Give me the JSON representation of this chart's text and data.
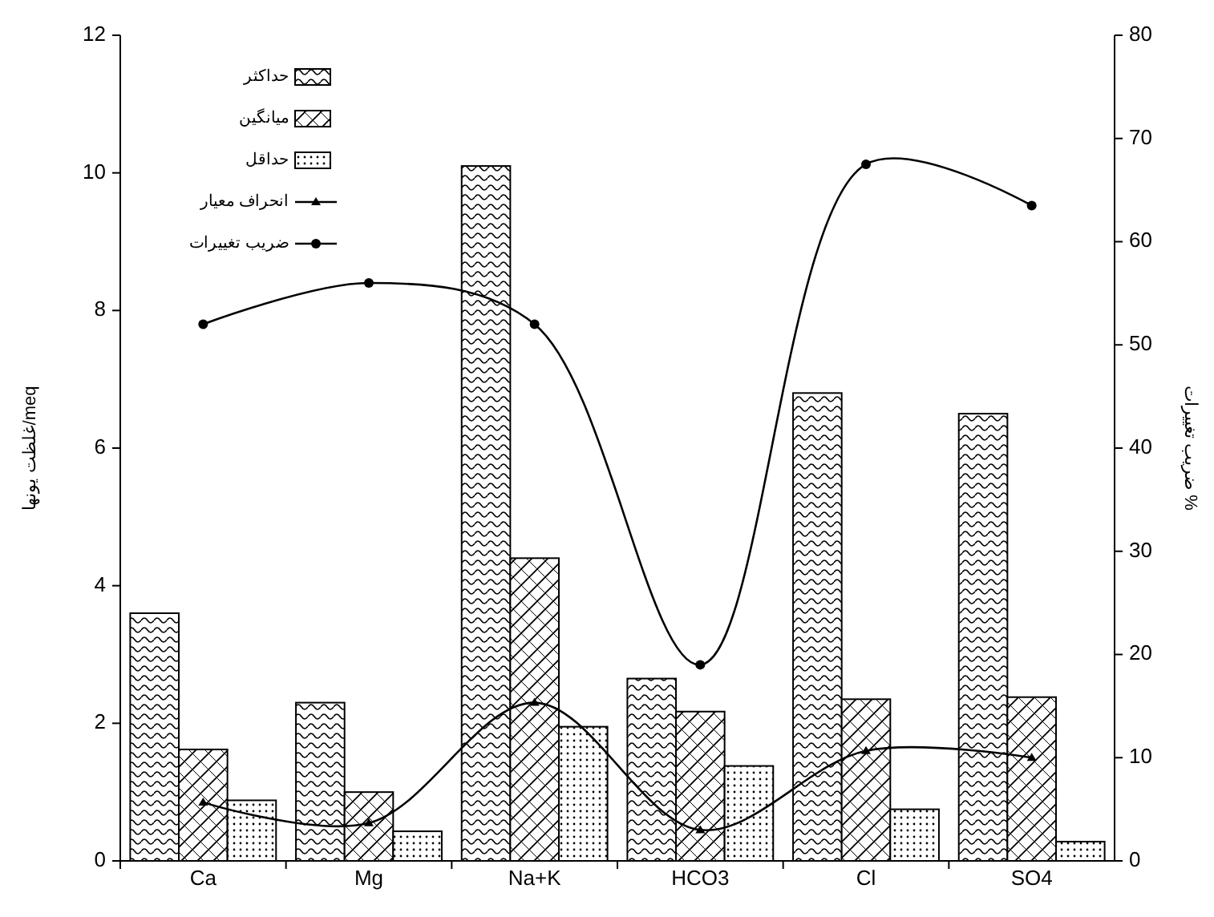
{
  "chart_data": {
    "type": "bar",
    "xlabel": null,
    "ylabel": "غلظت یونها/meq",
    "y2label": "ضریب تغییرات %",
    "categories": [
      "Ca",
      "Mg",
      "Na+K",
      "HCO3",
      "Cl",
      "SO4"
    ],
    "series": [
      {
        "name": "حداکثر",
        "color": "#000000",
        "values": [
          3.6,
          2.3,
          10.1,
          2.65,
          6.8,
          6.5
        ]
      },
      {
        "name": "میانگین",
        "color": "#000000",
        "values": [
          1.62,
          1.0,
          4.4,
          2.17,
          2.35,
          2.38
        ]
      },
      {
        "name": "حداقل",
        "color": "#000000",
        "values": [
          0.88,
          0.43,
          1.95,
          1.38,
          0.75,
          0.28
        ]
      },
      {
        "name": "انحراف معیار",
        "type": "line",
        "marker": "triangle",
        "color": "#000000",
        "values": [
          0.85,
          0.55,
          2.3,
          0.45,
          1.6,
          1.5
        ]
      },
      {
        "name": "ضریب تغییرات",
        "type": "line",
        "marker": "circle",
        "axis": "y2",
        "color": "#000000",
        "values": [
          52,
          56,
          52,
          19,
          67.5,
          63.5
        ]
      }
    ],
    "ylim": [
      0,
      12
    ],
    "yticks": [
      0,
      2,
      4,
      6,
      8,
      10,
      12
    ],
    "y2lim": [
      0,
      80
    ],
    "y2ticks": [
      0,
      10,
      20,
      30,
      40,
      50,
      60,
      70,
      80
    ],
    "legend": "top left"
  }
}
